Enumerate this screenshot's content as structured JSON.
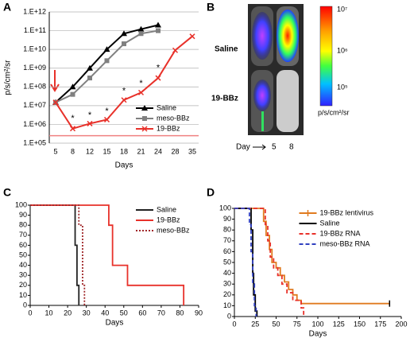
{
  "panel_labels": [
    "A",
    "B",
    "C",
    "D"
  ],
  "chart_data": [
    {
      "type": "line",
      "log_scale": true,
      "grid": true,
      "legend": "lower right",
      "x_label": "Days",
      "y_label": "p/s/cm²/sr",
      "categories": [
        "5",
        "8",
        "12",
        "15",
        "18",
        "21",
        "24",
        "28",
        "35"
      ],
      "ylim": [
        100000,
        1000000000000
      ],
      "yticks": [
        {
          "value": 100000,
          "label": "1.E+05"
        },
        {
          "value": 1000000,
          "label": "1.E+06"
        },
        {
          "value": 10000000,
          "label": "1.E+07"
        },
        {
          "value": 100000000,
          "label": "1.E+08"
        },
        {
          "value": 1000000000,
          "label": "1.E+09"
        },
        {
          "value": 10000000000,
          "label": "1.E+10"
        },
        {
          "value": 100000000000,
          "label": "1.E+11"
        },
        {
          "value": 1000000000000,
          "label": "1.E+12"
        }
      ],
      "reference_line": {
        "value": 250000,
        "color": "#f08080"
      },
      "annotations": [
        {
          "text": "*",
          "category": 1,
          "y": 2000000
        },
        {
          "text": "*",
          "category": 2,
          "y": 3000000
        },
        {
          "text": "*",
          "category": 3,
          "y": 5000000
        },
        {
          "text": "*",
          "category": 4,
          "y": 60000000
        },
        {
          "text": "*",
          "category": 5,
          "y": 150000000
        },
        {
          "text": "*",
          "category": 6,
          "y": 1000000000
        }
      ],
      "series": [
        {
          "name": "Saline",
          "color": "#000000",
          "marker": "triangle",
          "values": [
            15000000,
            100000000,
            1000000000,
            10000000000,
            70000000000,
            120000000000,
            200000000000,
            null,
            null
          ]
        },
        {
          "name": "meso-BBz",
          "color": "#808080",
          "marker": "square",
          "values": [
            15000000,
            40000000,
            300000000,
            2500000000,
            20000000000,
            70000000000,
            100000000000,
            null,
            null
          ]
        },
        {
          "name": "19-BBz",
          "color": "#e8312a",
          "marker": "x",
          "values": [
            15000000,
            600000,
            1100000,
            1800000,
            20000000,
            50000000,
            300000000,
            9000000000,
            50000000000
          ]
        }
      ]
    },
    {
      "type": "step",
      "legend": "upper right",
      "x_label": "Days",
      "xlim": [
        0,
        90
      ],
      "xticks": [
        0,
        10,
        20,
        30,
        40,
        50,
        60,
        70,
        80,
        90
      ],
      "ylim": [
        0,
        100
      ],
      "yticks": [
        0,
        10,
        20,
        30,
        40,
        50,
        60,
        70,
        80,
        90,
        100
      ],
      "series": [
        {
          "name": "Saline",
          "color": "#222222",
          "linestyle": "solid",
          "x": [
            0,
            24,
            25,
            26
          ],
          "values": [
            100,
            60,
            20,
            0
          ]
        },
        {
          "name": "19-BBz",
          "color": "#e8312a",
          "linestyle": "solid",
          "x": [
            0,
            42,
            44,
            52,
            82
          ],
          "values": [
            100,
            80,
            40,
            20,
            0
          ]
        },
        {
          "name": "meso-BBz",
          "color": "#a0282a",
          "linestyle": "dotted",
          "x": [
            0,
            26,
            28,
            29
          ],
          "values": [
            100,
            80,
            20,
            0
          ]
        }
      ]
    },
    {
      "type": "step",
      "legend": "upper right",
      "x_label": "Days",
      "xlim": [
        0,
        200
      ],
      "xticks": [
        0,
        25,
        50,
        75,
        100,
        125,
        150,
        175,
        200
      ],
      "ylim": [
        0,
        100
      ],
      "yticks": [
        0,
        10,
        20,
        30,
        40,
        50,
        60,
        70,
        80,
        90,
        100
      ],
      "series": [
        {
          "name": "19-BBz lentivirus",
          "color": "#e07b20",
          "linestyle": "solid",
          "censor_end": true,
          "x": [
            0,
            35,
            38,
            42,
            45,
            50,
            55,
            60,
            65,
            70,
            75,
            80,
            186
          ],
          "values": [
            100,
            88,
            75,
            62,
            50,
            45,
            38,
            32,
            25,
            20,
            15,
            12,
            12
          ]
        },
        {
          "name": "Saline",
          "color": "#000000",
          "linestyle": "solid",
          "x": [
            0,
            20,
            22,
            23,
            25,
            27
          ],
          "values": [
            100,
            80,
            40,
            20,
            5,
            0
          ]
        },
        {
          "name": "19-BBz RNA",
          "color": "#e8312a",
          "linestyle": "dashed",
          "x": [
            0,
            37,
            40,
            43,
            47,
            52,
            57,
            63,
            70,
            80,
            83
          ],
          "values": [
            100,
            85,
            70,
            55,
            45,
            38,
            30,
            22,
            15,
            8,
            0
          ]
        },
        {
          "name": "meso-BBz RNA",
          "color": "#3040c0",
          "linestyle": "dashed",
          "x": [
            0,
            18,
            20,
            22,
            24,
            26
          ],
          "values": [
            100,
            85,
            60,
            30,
            10,
            0
          ]
        }
      ]
    }
  ],
  "panel_b": {
    "rows": [
      "Saline",
      "19-BBz"
    ],
    "day_label": "Day",
    "days": [
      "5",
      "8"
    ],
    "colorbar_ticks": [
      "10⁷",
      "10⁶",
      "10⁵"
    ],
    "colorbar_unit": "p/s/cm²/sr"
  }
}
